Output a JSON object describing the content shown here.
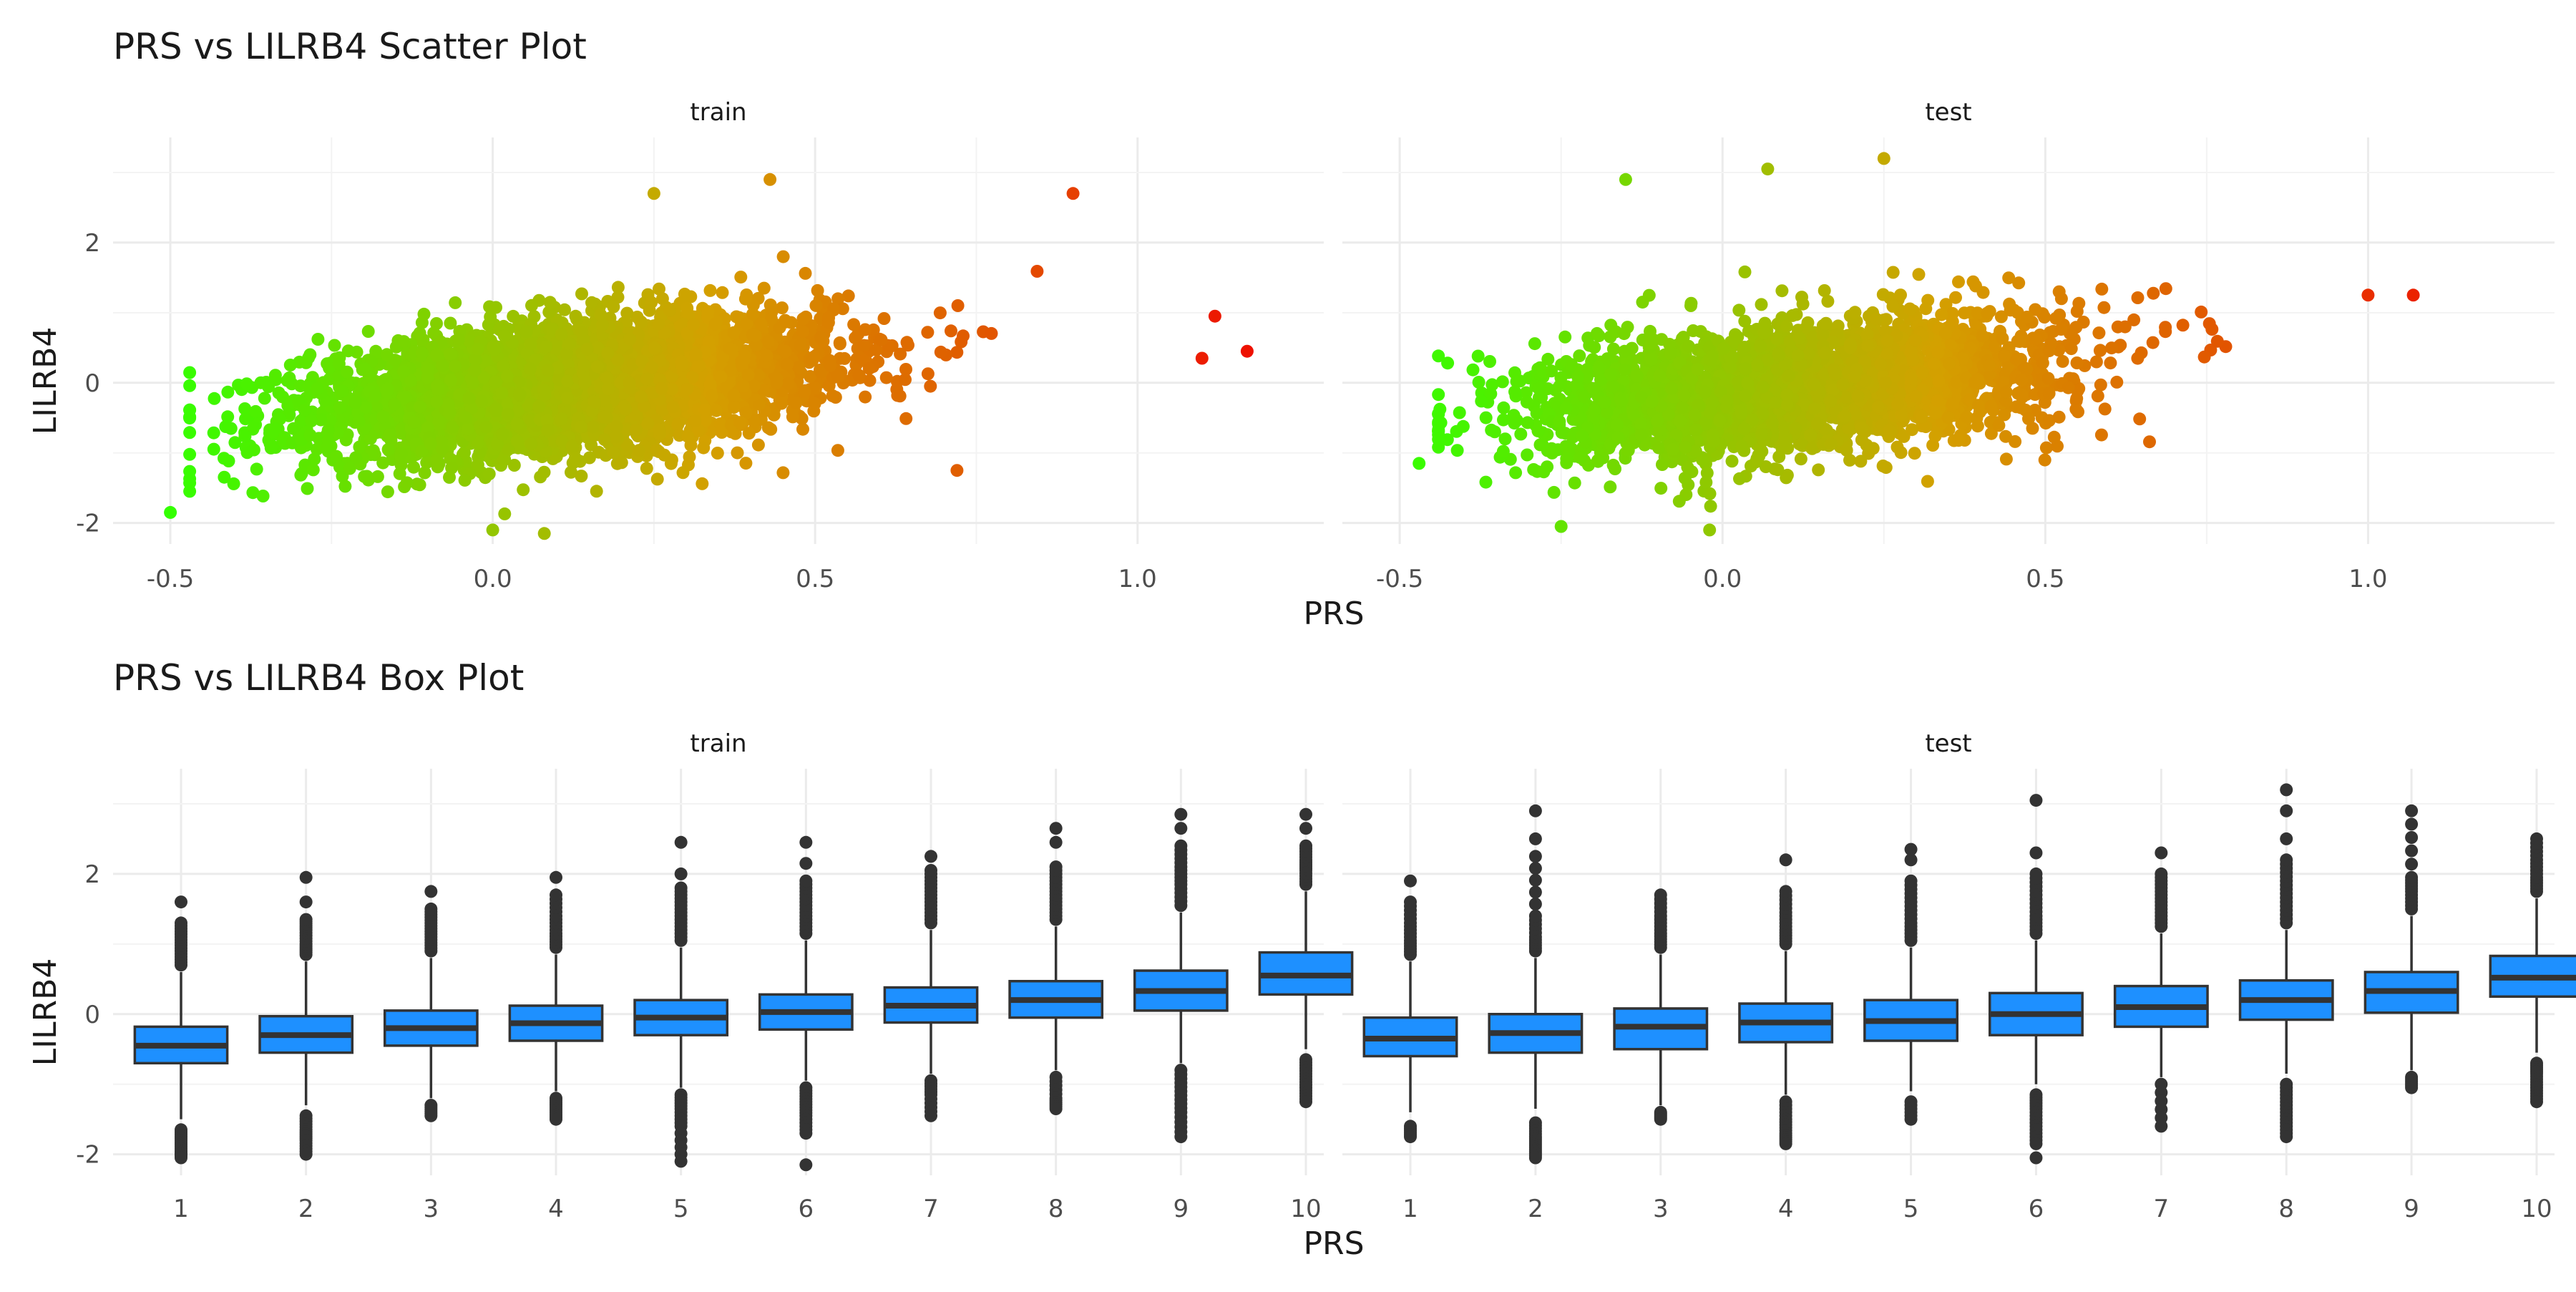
{
  "scatter": {
    "title": "PRS vs LILRB4 Scatter Plot",
    "xlabel": "PRS",
    "ylabel": "LILRB4",
    "xticks": [
      "-0.5",
      "0.0",
      "0.5",
      "1.0"
    ],
    "yticks": [
      "-2",
      "0",
      "2"
    ],
    "panels": [
      "train",
      "test"
    ]
  },
  "box": {
    "title": "PRS vs LILRB4 Box Plot",
    "xlabel": "PRS",
    "ylabel": "LILRB4",
    "xticks": [
      "1",
      "2",
      "3",
      "4",
      "5",
      "6",
      "7",
      "8",
      "9",
      "10"
    ],
    "yticks": [
      "-2",
      "0",
      "2"
    ],
    "panels": [
      "train",
      "test"
    ]
  },
  "chart_data": [
    {
      "type": "scatter",
      "title": "PRS vs LILRB4 Scatter Plot",
      "xlabel": "PRS",
      "ylabel": "LILRB4",
      "xlim": [
        -0.55,
        1.25
      ],
      "ylim": [
        -2.3,
        3.5
      ],
      "color_scale": {
        "low": "#33ff00",
        "mid": "#d4a000",
        "high": "#ee1100",
        "mapped_to": "PRS"
      },
      "panels": [
        {
          "name": "train",
          "approx_n": 6000,
          "trend": {
            "x": [
              -0.45,
              0.0,
              0.5,
              1.0,
              1.17
            ],
            "y": [
              -0.6,
              -0.15,
              0.3,
              0.75,
              0.9
            ]
          },
          "spread_sd": 0.45,
          "x_range": [
            -0.5,
            1.17
          ],
          "notable_points": [
            {
              "x": -0.5,
              "y": -1.85
            },
            {
              "x": 0.08,
              "y": -2.15
            },
            {
              "x": 0.0,
              "y": -2.1
            },
            {
              "x": 0.25,
              "y": 2.7
            },
            {
              "x": 0.43,
              "y": 2.9
            },
            {
              "x": 0.9,
              "y": 2.7
            },
            {
              "x": 0.72,
              "y": -1.25
            },
            {
              "x": 1.1,
              "y": 0.35
            },
            {
              "x": 1.17,
              "y": 0.45
            },
            {
              "x": 1.12,
              "y": 0.95
            }
          ]
        },
        {
          "name": "test",
          "approx_n": 3000,
          "trend": {
            "x": [
              -0.45,
              0.0,
              0.5,
              1.0,
              1.07
            ],
            "y": [
              -0.6,
              -0.15,
              0.3,
              0.75,
              0.85
            ]
          },
          "spread_sd": 0.45,
          "x_range": [
            -0.47,
            1.07
          ],
          "notable_points": [
            {
              "x": -0.47,
              "y": -1.15
            },
            {
              "x": -0.02,
              "y": -2.1
            },
            {
              "x": 0.07,
              "y": 3.05
            },
            {
              "x": 0.25,
              "y": 3.2
            },
            {
              "x": -0.15,
              "y": 2.9
            },
            {
              "x": 1.07,
              "y": 1.25
            },
            {
              "x": 1.0,
              "y": 1.25
            },
            {
              "x": -0.25,
              "y": -2.05
            }
          ]
        }
      ]
    },
    {
      "type": "box",
      "title": "PRS vs LILRB4 Box Plot",
      "xlabel": "PRS",
      "ylabel": "LILRB4",
      "ylim": [
        -2.3,
        3.5
      ],
      "categories": [
        "1",
        "2",
        "3",
        "4",
        "5",
        "6",
        "7",
        "8",
        "9",
        "10"
      ],
      "fill": "#1e90ff",
      "panels": [
        {
          "name": "train",
          "q1": [
            -0.7,
            -0.55,
            -0.45,
            -0.38,
            -0.3,
            -0.22,
            -0.12,
            -0.05,
            0.05,
            0.28
          ],
          "median": [
            -0.45,
            -0.3,
            -0.2,
            -0.13,
            -0.05,
            0.03,
            0.12,
            0.2,
            0.33,
            0.55
          ],
          "q3": [
            -0.18,
            -0.03,
            0.05,
            0.12,
            0.2,
            0.28,
            0.38,
            0.47,
            0.62,
            0.88
          ],
          "whisker_low": [
            -1.5,
            -1.3,
            -1.2,
            -1.1,
            -1.05,
            -0.95,
            -0.85,
            -0.8,
            -0.7,
            -0.5
          ],
          "whisker_high": [
            0.6,
            0.75,
            0.8,
            0.85,
            0.95,
            1.05,
            1.2,
            1.25,
            1.45,
            1.75
          ],
          "outliers_high": [
            [
              0.7,
              0.9,
              1.1,
              1.3,
              1.6
            ],
            [
              0.85,
              1.0,
              1.2,
              1.35,
              1.6,
              1.95
            ],
            [
              0.9,
              1.1,
              1.3,
              1.5,
              1.75
            ],
            [
              0.95,
              1.15,
              1.4,
              1.7,
              1.95
            ],
            [
              1.05,
              1.3,
              1.55,
              1.8,
              2.0,
              2.45
            ],
            [
              1.15,
              1.4,
              1.65,
              1.9,
              2.15,
              2.45
            ],
            [
              1.3,
              1.55,
              1.8,
              2.05,
              2.25
            ],
            [
              1.35,
              1.6,
              1.85,
              2.1,
              2.45,
              2.65
            ],
            [
              1.55,
              1.85,
              2.1,
              2.4,
              2.65,
              2.85
            ],
            [
              1.85,
              2.05,
              2.2,
              2.4,
              2.65,
              2.85
            ]
          ],
          "outliers_low": [
            [
              -1.65,
              -1.8,
              -1.95,
              -2.05
            ],
            [
              -1.45,
              -1.65,
              -1.8,
              -2.0
            ],
            [
              -1.3,
              -1.45
            ],
            [
              -1.2,
              -1.35,
              -1.5
            ],
            [
              -1.15,
              -1.35,
              -1.6,
              -2.1
            ],
            [
              -1.05,
              -1.25,
              -1.45,
              -1.7,
              -2.15
            ],
            [
              -0.95,
              -1.15,
              -1.45
            ],
            [
              -0.9,
              -1.2,
              -1.35
            ],
            [
              -0.8,
              -1.1,
              -1.4,
              -1.75
            ],
            [
              -0.65,
              -0.85,
              -1.05,
              -1.25
            ]
          ]
        },
        {
          "name": "test",
          "q1": [
            -0.6,
            -0.55,
            -0.5,
            -0.4,
            -0.38,
            -0.3,
            -0.18,
            -0.08,
            0.02,
            0.25
          ],
          "median": [
            -0.35,
            -0.27,
            -0.18,
            -0.12,
            -0.1,
            0.0,
            0.1,
            0.2,
            0.33,
            0.52
          ],
          "q3": [
            -0.05,
            0.0,
            0.08,
            0.15,
            0.2,
            0.3,
            0.4,
            0.48,
            0.6,
            0.83
          ],
          "whisker_low": [
            -1.4,
            -1.35,
            -1.3,
            -1.15,
            -1.1,
            -1.0,
            -0.9,
            -0.85,
            -0.8,
            -0.55
          ],
          "whisker_high": [
            0.75,
            0.8,
            0.85,
            0.9,
            0.95,
            1.05,
            1.15,
            1.2,
            1.4,
            1.65
          ],
          "outliers_high": [
            [
              0.85,
              1.05,
              1.3,
              1.6,
              1.9
            ],
            [
              0.9,
              1.1,
              1.4,
              2.25,
              2.5,
              2.9
            ],
            [
              0.95,
              1.15,
              1.4,
              1.7
            ],
            [
              1.0,
              1.2,
              1.45,
              1.75,
              2.2
            ],
            [
              1.05,
              1.3,
              1.6,
              1.9,
              2.2,
              2.35
            ],
            [
              1.15,
              1.4,
              1.7,
              2.0,
              2.3,
              3.05
            ],
            [
              1.25,
              1.5,
              1.75,
              2.0,
              2.3
            ],
            [
              1.3,
              1.6,
              1.9,
              2.2,
              2.5,
              2.9,
              3.2
            ],
            [
              1.5,
              1.75,
              1.95,
              2.9
            ],
            [
              1.75,
              1.95,
              2.2,
              2.5
            ]
          ],
          "outliers_low": [
            [
              -1.6,
              -1.75
            ],
            [
              -1.55,
              -1.75,
              -1.9,
              -2.05
            ],
            [
              -1.4,
              -1.5
            ],
            [
              -1.25,
              -1.5,
              -1.7,
              -1.85
            ],
            [
              -1.25,
              -1.5
            ],
            [
              -1.15,
              -1.35,
              -1.6,
              -1.85,
              -2.05
            ],
            [
              -1.0,
              -1.6
            ],
            [
              -1.0,
              -1.25,
              -1.5,
              -1.75
            ],
            [
              -0.9,
              -1.05
            ],
            [
              -0.7,
              -0.85,
              -1.05,
              -1.25
            ]
          ]
        }
      ]
    }
  ]
}
